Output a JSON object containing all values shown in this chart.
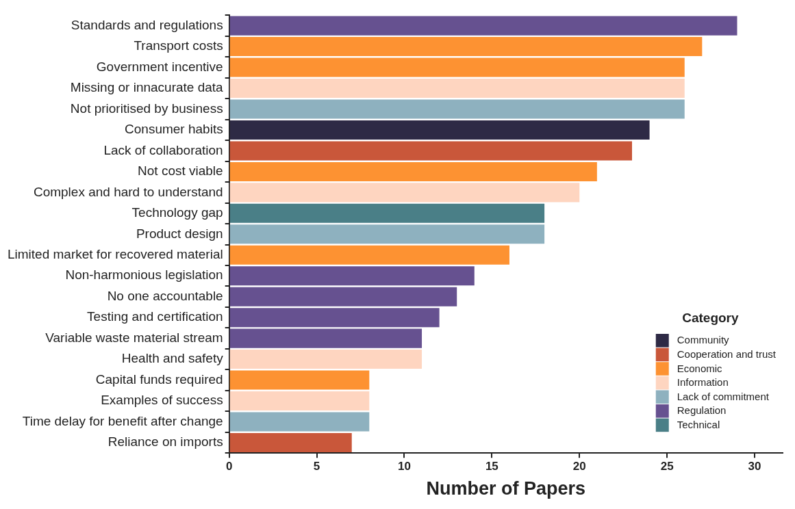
{
  "chart_data": {
    "type": "bar",
    "orientation": "horizontal",
    "xlabel": "Number of Papers",
    "legend_title": "Category",
    "legend": "bottom right",
    "grid": false,
    "categories": [
      "Standards and regulations",
      "Transport costs",
      "Government incentive",
      "Missing or innacurate data",
      "Not prioritised by business",
      "Consumer habits",
      "Lack of collaboration",
      "Not cost viable",
      "Complex and hard to understand",
      "Technology gap",
      "Product design",
      "Limited market for recovered material",
      "Non-harmonious legislation",
      "No one accountable",
      "Testing and certification",
      "Variable waste material stream",
      "Health and safety",
      "Capital funds required",
      "Examples of success",
      "Time delay for benefit after change",
      "Reliance on imports"
    ],
    "xlim": [
      0,
      31.6
    ],
    "xticks": [
      0,
      5,
      10,
      15,
      20,
      25,
      30
    ],
    "series": [
      {
        "name": "Community",
        "color": "#2e2a45",
        "values": [
          null,
          null,
          null,
          null,
          null,
          24,
          null,
          null,
          null,
          null,
          null,
          null,
          null,
          null,
          null,
          null,
          null,
          null,
          null,
          null,
          null
        ]
      },
      {
        "name": "Cooperation and trust",
        "color": "#c9573a",
        "values": [
          null,
          null,
          null,
          null,
          null,
          null,
          23,
          null,
          null,
          null,
          null,
          null,
          null,
          null,
          null,
          null,
          null,
          null,
          null,
          null,
          7
        ]
      },
      {
        "name": "Economic",
        "color": "#fd9232",
        "values": [
          null,
          27,
          26,
          null,
          null,
          null,
          null,
          21,
          null,
          null,
          null,
          16,
          null,
          null,
          null,
          null,
          null,
          8,
          null,
          null,
          null
        ]
      },
      {
        "name": "Information",
        "color": "#fed5c0",
        "values": [
          null,
          null,
          null,
          26,
          null,
          null,
          null,
          null,
          20,
          null,
          null,
          null,
          null,
          null,
          null,
          null,
          11,
          null,
          8,
          null,
          null
        ]
      },
      {
        "name": "Lack of commitment",
        "color": "#8eb1bf",
        "values": [
          null,
          null,
          null,
          null,
          26,
          null,
          null,
          null,
          null,
          null,
          18,
          null,
          null,
          null,
          null,
          null,
          null,
          null,
          null,
          8,
          null
        ]
      },
      {
        "name": "Regulation",
        "color": "#665190",
        "values": [
          29,
          null,
          null,
          null,
          null,
          null,
          null,
          null,
          null,
          null,
          null,
          null,
          14,
          13,
          12,
          11,
          null,
          null,
          null,
          null,
          null
        ]
      },
      {
        "name": "Technical",
        "color": "#4a7f87",
        "values": [
          null,
          null,
          null,
          null,
          null,
          null,
          null,
          null,
          null,
          18,
          null,
          null,
          null,
          null,
          null,
          null,
          null,
          null,
          null,
          null,
          null
        ]
      }
    ]
  }
}
